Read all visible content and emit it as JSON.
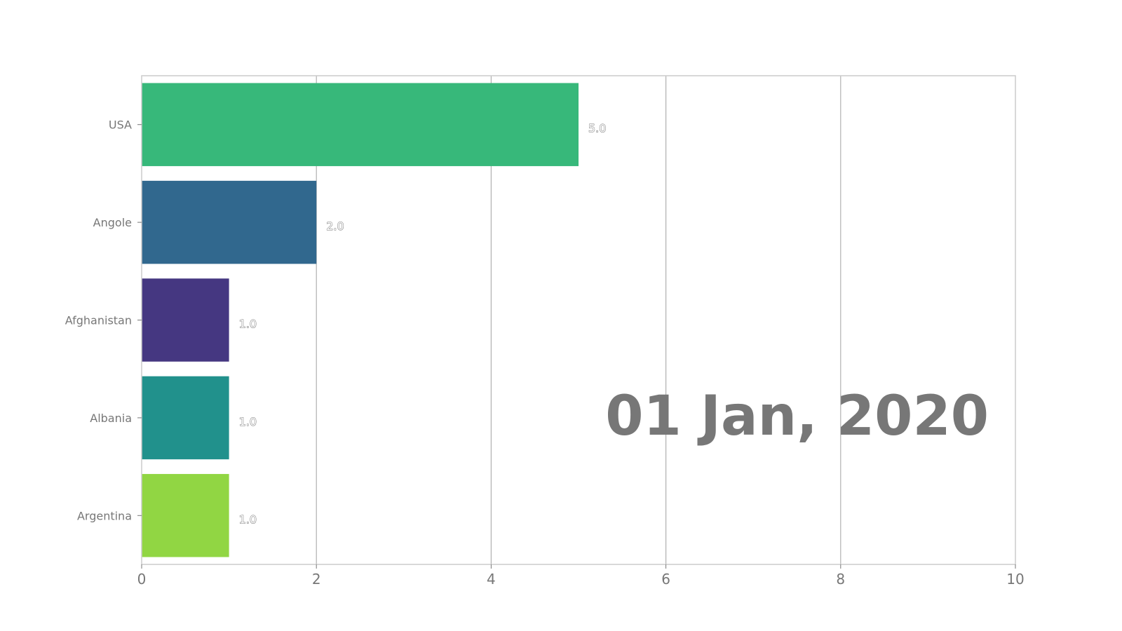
{
  "chart_data": {
    "type": "bar",
    "orientation": "horizontal",
    "categories": [
      "USA",
      "Angole",
      "Afghanistan",
      "Albania",
      "Argentina"
    ],
    "values": [
      5.0,
      2.0,
      1.0,
      1.0,
      1.0
    ],
    "value_labels": [
      "5.0",
      "2.0",
      "1.0",
      "1.0",
      "1.0"
    ],
    "colors": [
      "#37b87a",
      "#31688e",
      "#453781",
      "#21918c",
      "#91d643"
    ],
    "xlim": [
      0,
      10
    ],
    "xticks": [
      0,
      2,
      4,
      6,
      8,
      10
    ],
    "xtick_labels": [
      "0",
      "2",
      "4",
      "6",
      "8",
      "10"
    ],
    "grid": "vertical",
    "xlabel": "",
    "ylabel": "",
    "date_label": "01  Jan, 2020"
  }
}
